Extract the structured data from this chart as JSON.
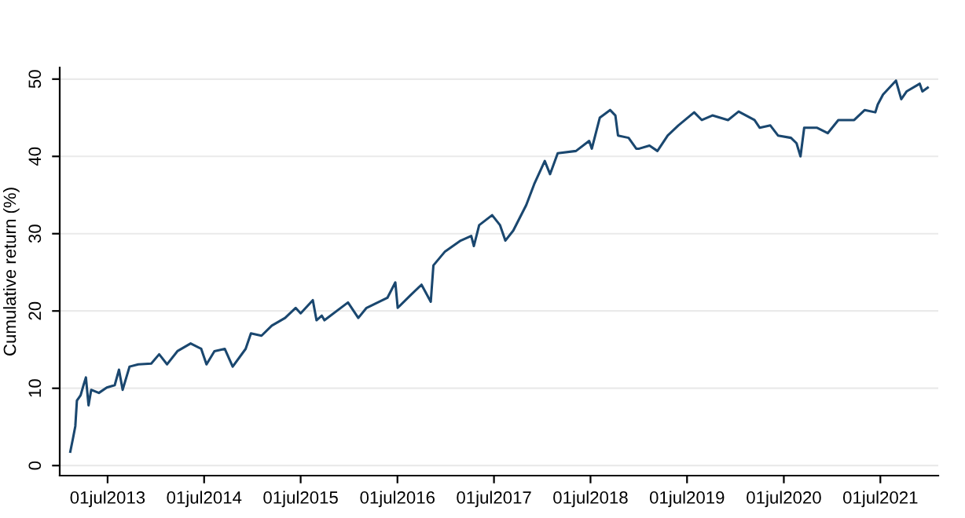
{
  "chart_data": {
    "type": "line",
    "ylabel": "Cumulative return (%)",
    "x": [
      "2013-02-10",
      "2013-02-20",
      "2013-03-01",
      "2013-03-07",
      "2013-03-21",
      "2013-04-01",
      "2013-04-10",
      "2013-04-20",
      "2013-04-30",
      "2013-05-29",
      "2013-06-28",
      "2013-07-28",
      "2013-08-13",
      "2013-08-27",
      "2013-09-22",
      "2013-10-25",
      "2013-12-13",
      "2014-01-12",
      "2014-02-11",
      "2014-03-22",
      "2014-05-11",
      "2014-06-20",
      "2014-07-10",
      "2014-08-09",
      "2014-09-17",
      "2014-10-17",
      "2014-12-05",
      "2014-12-25",
      "2015-02-03",
      "2015-03-14",
      "2015-05-03",
      "2015-06-12",
      "2015-07-01",
      "2015-08-16",
      "2015-08-30",
      "2015-09-19",
      "2015-09-29",
      "2015-12-27",
      "2016-02-04",
      "2016-03-06",
      "2016-05-24",
      "2016-06-23",
      "2016-07-02",
      "2016-08-21",
      "2016-09-30",
      "2016-11-04",
      "2016-11-14",
      "2016-12-28",
      "2017-02-25",
      "2017-04-06",
      "2017-04-16",
      "2017-05-06",
      "2017-06-24",
      "2017-07-24",
      "2017-08-13",
      "2017-09-12",
      "2017-10-31",
      "2017-11-30",
      "2018-01-09",
      "2018-01-29",
      "2018-02-27",
      "2018-05-07",
      "2018-06-26",
      "2018-07-06",
      "2018-08-05",
      "2018-09-13",
      "2018-10-03",
      "2018-10-13",
      "2018-11-22",
      "2018-12-21",
      "2019-01-01",
      "2019-02-09",
      "2019-03-11",
      "2019-04-19",
      "2019-05-29",
      "2019-07-28",
      "2019-08-26",
      "2019-10-05",
      "2019-12-03",
      "2020-01-12",
      "2020-03-12",
      "2020-04-01",
      "2020-05-11",
      "2020-06-09",
      "2020-07-28",
      "2020-08-18",
      "2020-09-02",
      "2020-09-16",
      "2020-11-04",
      "2020-12-14",
      "2021-01-23",
      "2021-03-24",
      "2021-05-03",
      "2021-06-12",
      "2021-06-21",
      "2021-07-11",
      "2021-08-29",
      "2021-09-18",
      "2021-10-08",
      "2021-11-27",
      "2021-12-07",
      "2021-12-27"
    ],
    "series": [
      {
        "color": "#1a476f",
        "values": [
          1.8,
          3.5,
          5.1,
          8.4,
          9.1,
          10.4,
          11.4,
          7.8,
          9.8,
          9.4,
          10.1,
          10.4,
          12.4,
          9.8,
          12.8,
          13.1,
          13.2,
          14.4,
          13.1,
          14.8,
          15.8,
          15.1,
          13.1,
          14.8,
          15.1,
          12.8,
          15.1,
          17.1,
          16.8,
          18.1,
          19.1,
          20.4,
          19.7,
          21.4,
          18.8,
          19.4,
          18.8,
          21.1,
          19.1,
          20.4,
          21.7,
          23.7,
          20.4,
          22.1,
          23.4,
          21.2,
          25.9,
          27.7,
          29.1,
          29.7,
          28.4,
          31.1,
          32.4,
          31.1,
          29.1,
          30.4,
          33.7,
          36.4,
          39.4,
          37.7,
          40.4,
          40.7,
          42.0,
          41.0,
          45.0,
          46.0,
          45.3,
          42.7,
          42.4,
          41.0,
          41.0,
          41.4,
          40.7,
          42.7,
          44.0,
          45.7,
          44.7,
          45.3,
          44.7,
          45.8,
          44.7,
          43.7,
          44.0,
          42.7,
          42.4,
          41.7,
          40.0,
          43.7,
          43.7,
          43.0,
          44.7,
          44.7,
          46.0,
          45.7,
          46.7,
          48.0,
          49.8,
          47.4,
          48.4,
          49.4,
          48.4,
          48.9
        ]
      }
    ],
    "xlim": [
      "2013-01-01",
      "2022-02-05"
    ],
    "xticks": [
      {
        "value": "2013-07-01",
        "label": "01jul2013"
      },
      {
        "value": "2014-07-01",
        "label": "01jul2014"
      },
      {
        "value": "2015-07-01",
        "label": "01jul2015"
      },
      {
        "value": "2016-07-01",
        "label": "01jul2016"
      },
      {
        "value": "2017-07-01",
        "label": "01jul2017"
      },
      {
        "value": "2018-07-01",
        "label": "01jul2018"
      },
      {
        "value": "2019-07-01",
        "label": "01jul2019"
      },
      {
        "value": "2020-07-01",
        "label": "01jul2020"
      },
      {
        "value": "2021-07-01",
        "label": "01jul2021"
      }
    ],
    "ylim": [
      -1.3,
      51.5
    ],
    "yticks": [
      0,
      10,
      20,
      30,
      40,
      50
    ],
    "grid": "y",
    "legend": false,
    "marker": "none",
    "line_style": "solid"
  }
}
